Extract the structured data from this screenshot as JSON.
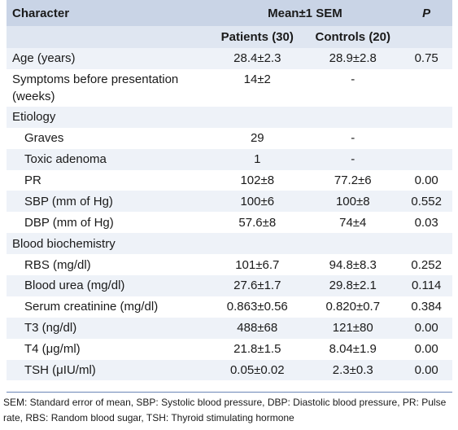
{
  "header": {
    "character": "Character",
    "mean": "Mean±1 SEM",
    "p": "P",
    "patients": "Patients (30)",
    "controls": "Controls (20)"
  },
  "rows": [
    {
      "label": "Age (years)",
      "patients": "28.4±2.3",
      "controls": "28.9±2.8",
      "p": "0.75"
    },
    {
      "label": "Symptoms before presentation (weeks)",
      "patients": "14±2",
      "controls": "-",
      "p": ""
    },
    {
      "label": "Etiology",
      "patients": "",
      "controls": "",
      "p": ""
    },
    {
      "label": "Graves",
      "patients": "29",
      "controls": "-",
      "p": ""
    },
    {
      "label": "Toxic adenoma",
      "patients": "1",
      "controls": "-",
      "p": ""
    },
    {
      "label": "PR",
      "patients": "102±8",
      "controls": "77.2±6",
      "p": "0.00"
    },
    {
      "label": "SBP (mm of Hg)",
      "patients": "100±6",
      "controls": "100±8",
      "p": "0.552"
    },
    {
      "label": "DBP (mm of Hg)",
      "patients": "57.6±8",
      "controls": "74±4",
      "p": "0.03"
    },
    {
      "label": "Blood biochemistry",
      "patients": "",
      "controls": "",
      "p": ""
    },
    {
      "label": "RBS (mg/dl)",
      "patients": "101±6.7",
      "controls": "94.8±8.3",
      "p": "0.252"
    },
    {
      "label": "Blood urea (mg/dl)",
      "patients": "27.6±1.7",
      "controls": "29.8±2.1",
      "p": "0.114"
    },
    {
      "label": "Serum creatinine (mg/dl)",
      "patients": "0.863±0.56",
      "controls": "0.820±0.7",
      "p": "0.384"
    },
    {
      "label": "T3 (ng/dl)",
      "patients": "488±68",
      "controls": "121±80",
      "p": "0.00"
    },
    {
      "label": "T4 (μg/ml)",
      "patients": "21.8±1.5",
      "controls": "8.04±1.9",
      "p": "0.00"
    },
    {
      "label": "TSH (μIU/ml)",
      "patients": "0.05±0.02",
      "controls": "2.3±0.3",
      "p": "0.00"
    }
  ],
  "footnote": "SEM: Standard error of mean, SBP: Systolic blood pressure, DBP: Diastolic blood pressure, PR: Pulse rate, RBS: Random blood sugar, TSH: Thyroid stimulating hormone"
}
